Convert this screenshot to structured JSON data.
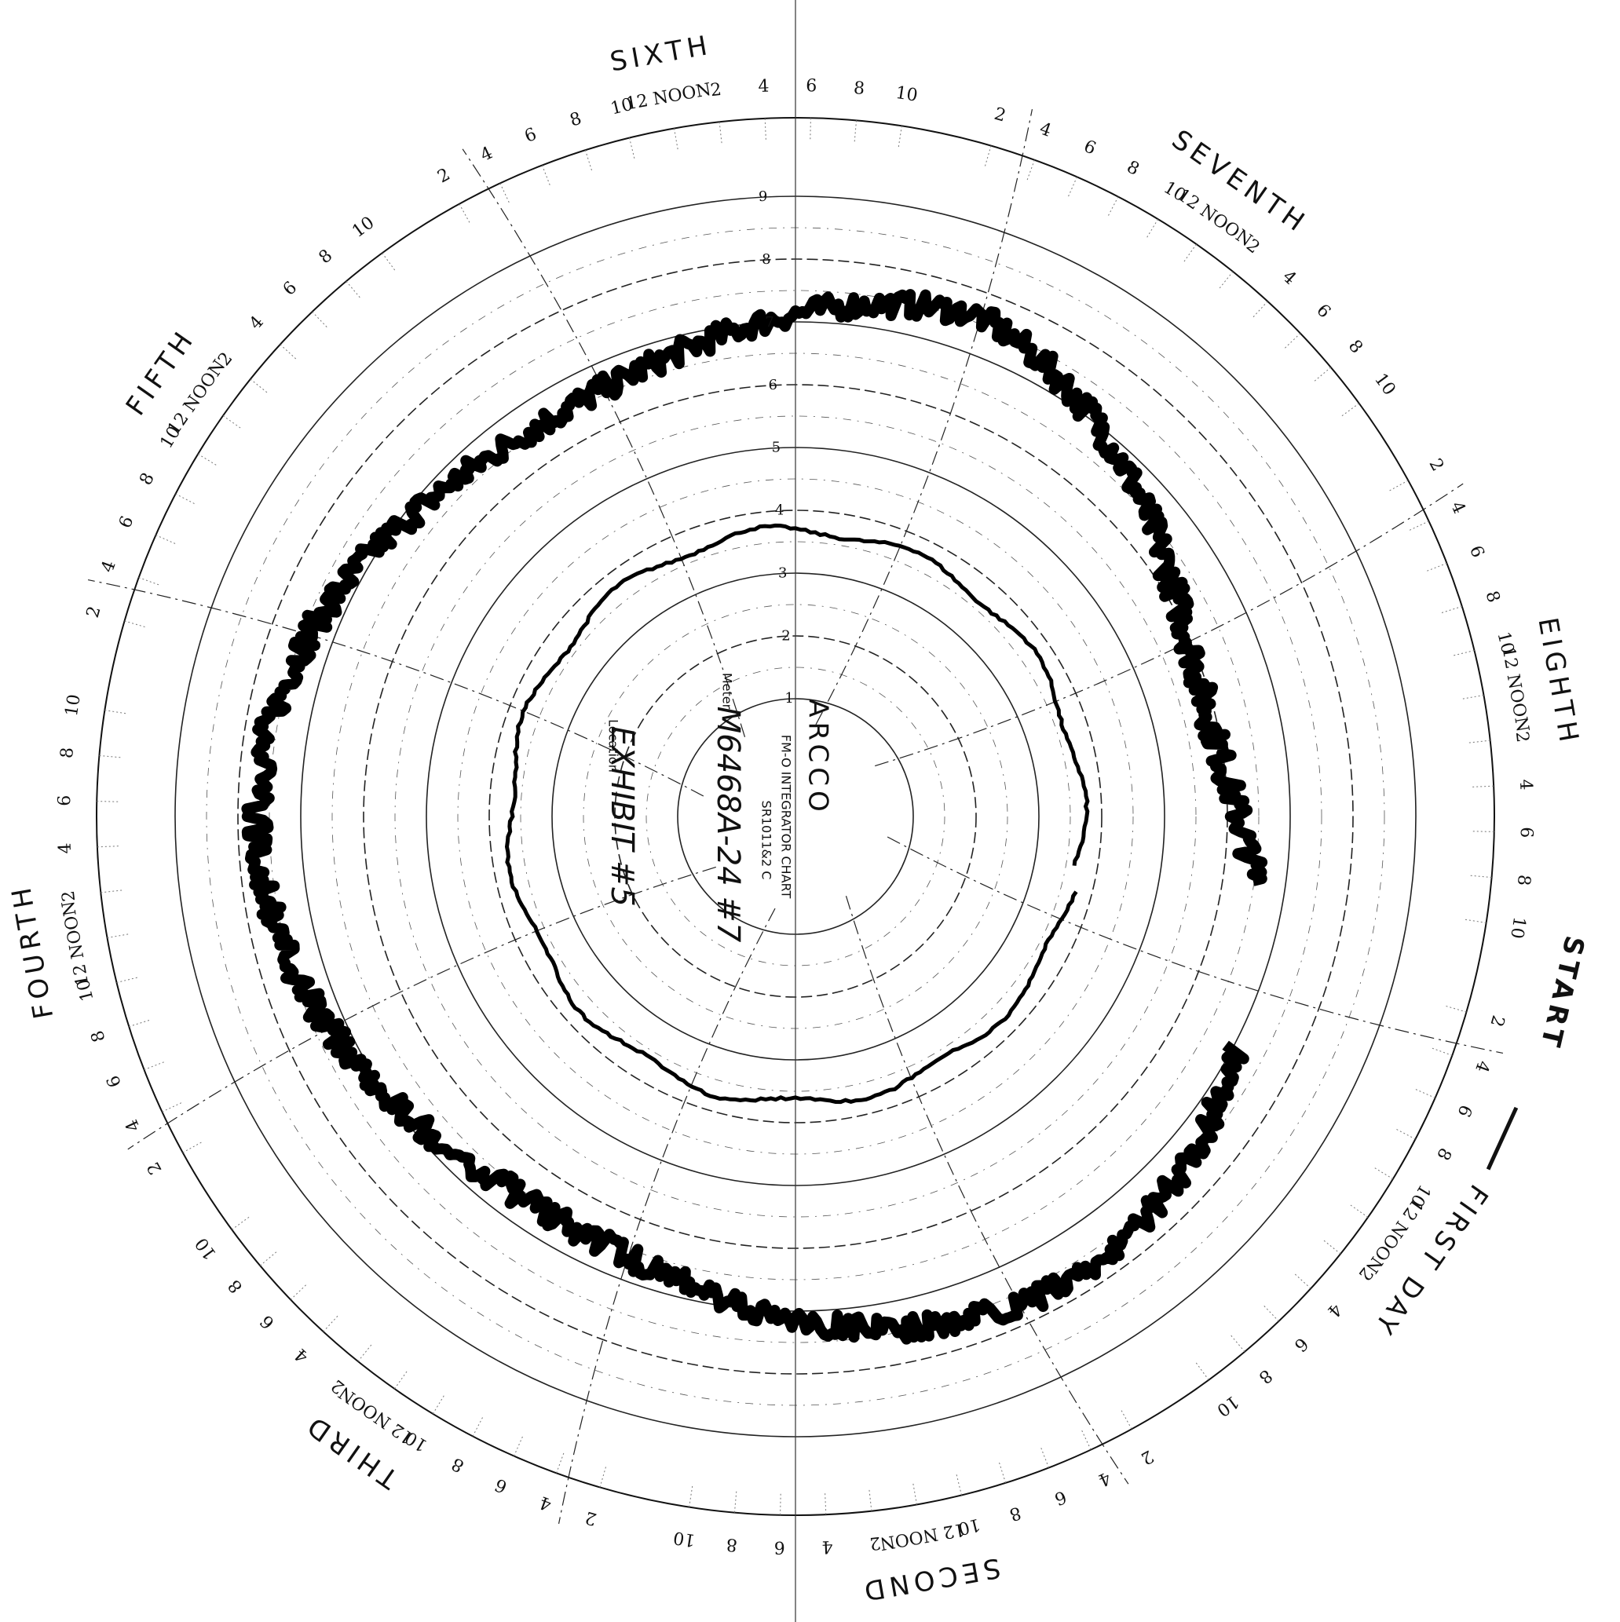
{
  "chart": {
    "start_label": "START",
    "days": [
      {
        "name": "FIRST DAY",
        "hours": [
          "2",
          "4",
          "6",
          "8",
          "10",
          "12 NOON",
          "2",
          "4",
          "6",
          "8",
          "10"
        ]
      },
      {
        "name": "SECOND",
        "hours": [
          "2",
          "4",
          "6",
          "8",
          "10",
          "12 NOON",
          "2",
          "4",
          "6",
          "8",
          "10"
        ]
      },
      {
        "name": "THIRD",
        "hours": [
          "2",
          "4",
          "6",
          "8",
          "10",
          "12 NOON",
          "2",
          "4",
          "6",
          "8",
          "10"
        ]
      },
      {
        "name": "FOURTH",
        "hours": [
          "2",
          "4",
          "6",
          "8",
          "10",
          "12 NOON",
          "2",
          "4",
          "6",
          "8",
          "10"
        ]
      },
      {
        "name": "FIFTH",
        "hours": [
          "2",
          "4",
          "6",
          "8",
          "10",
          "12 NOON",
          "2",
          "4",
          "6",
          "8",
          "10"
        ]
      },
      {
        "name": "SIXTH",
        "hours": [
          "2",
          "4",
          "6",
          "8",
          "10",
          "12 NOON",
          "2",
          "4",
          "6",
          "8",
          "10"
        ]
      },
      {
        "name": "SEVENTH",
        "hours": [
          "2",
          "4",
          "6",
          "8",
          "10",
          "12 NOON",
          "2",
          "4",
          "6",
          "8",
          "10"
        ]
      },
      {
        "name": "EIGHTH",
        "hours": [
          "2",
          "4",
          "6",
          "8",
          "10",
          "12 NOON",
          "2",
          "4",
          "6",
          "8",
          "10"
        ]
      }
    ],
    "ring_labels": [
      "1",
      "2",
      "3",
      "4",
      "5",
      "6",
      "7",
      "8",
      "9"
    ],
    "center": {
      "brand": "ARCCO",
      "subtitle": "FM-O INTEGRATOR CHART",
      "code": "SR1011&2 C",
      "meter_label": "Meter",
      "meter": "M6468A-24 #7",
      "location_label": "Location",
      "exhibit": "EXHIBIT #5"
    }
  }
}
